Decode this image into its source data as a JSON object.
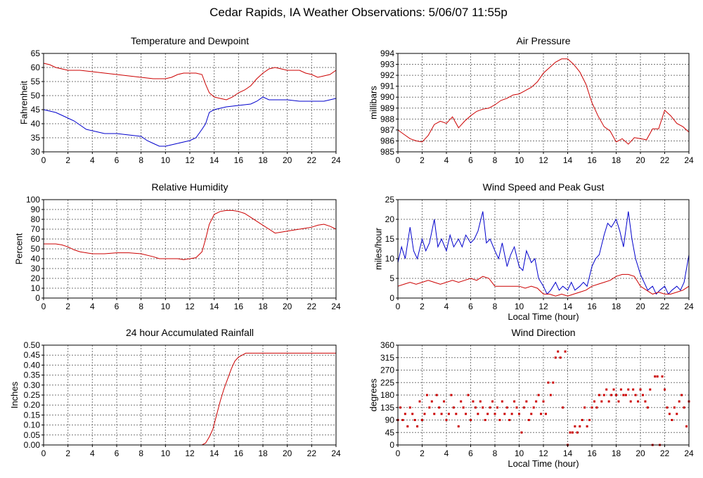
{
  "page_title": "Cedar Rapids, IA Weather Observations: 5/06/07 11:55p",
  "chart_data": [
    {
      "id": "temp",
      "type": "line",
      "title": "Temperature and Dewpoint",
      "xlabel": "",
      "ylabel": "Fahrenheit",
      "xlim": [
        0,
        24
      ],
      "ylim": [
        30,
        65
      ],
      "xticks": [
        0,
        2,
        4,
        6,
        8,
        10,
        12,
        14,
        16,
        18,
        20,
        22,
        24
      ],
      "yticks": [
        30,
        35,
        40,
        45,
        50,
        55,
        60,
        65
      ],
      "grid": true,
      "series": [
        {
          "color": "#cc0000",
          "x": [
            0,
            0.5,
            1,
            1.5,
            2,
            3,
            4,
            5,
            6,
            7,
            8,
            9,
            10,
            10.5,
            11,
            11.5,
            12,
            12.5,
            13,
            13.3,
            13.6,
            14,
            14.5,
            15,
            15.5,
            16,
            16.5,
            17,
            17.5,
            18,
            18.5,
            19,
            19.5,
            20,
            20.5,
            21,
            21.5,
            22,
            22.5,
            23,
            23.5,
            24
          ],
          "y": [
            61.5,
            61,
            60,
            59.5,
            59,
            59,
            58.5,
            58,
            57.5,
            57,
            56.5,
            56,
            56,
            56.5,
            57.5,
            58,
            58,
            58,
            57.5,
            54,
            51,
            49.5,
            49,
            48.5,
            49.5,
            51,
            52,
            53.5,
            56,
            58,
            59.5,
            60,
            59.5,
            59,
            59,
            59,
            58,
            57.5,
            56.5,
            57,
            57.5,
            59
          ]
        },
        {
          "color": "#0000cc",
          "x": [
            0,
            0.5,
            1,
            1.5,
            2,
            2.5,
            3,
            3.5,
            4,
            4.5,
            5,
            6,
            7,
            8,
            8.5,
            9,
            9.5,
            10,
            10.5,
            11,
            11.5,
            12,
            12.5,
            13,
            13.3,
            13.6,
            14,
            15,
            16,
            17,
            17.5,
            18,
            18.5,
            19,
            20,
            21,
            22,
            23,
            24
          ],
          "y": [
            45,
            44.5,
            44,
            43,
            42,
            41,
            39.5,
            38,
            37.5,
            37,
            36.5,
            36.5,
            36,
            35.5,
            34,
            33,
            32,
            32,
            32.5,
            33,
            33.5,
            34,
            35,
            38,
            40,
            44,
            45,
            46,
            46.5,
            47,
            48,
            49.5,
            48.5,
            48.5,
            48.5,
            48,
            48,
            48,
            49
          ]
        }
      ]
    },
    {
      "id": "pressure",
      "type": "line",
      "title": "Air Pressure",
      "xlabel": "",
      "ylabel": "millibars",
      "xlim": [
        0,
        24
      ],
      "ylim": [
        985,
        994
      ],
      "xticks": [
        0,
        2,
        4,
        6,
        8,
        10,
        12,
        14,
        16,
        18,
        20,
        22,
        24
      ],
      "yticks": [
        985,
        986,
        987,
        988,
        989,
        990,
        991,
        992,
        993,
        994
      ],
      "grid": true,
      "series": [
        {
          "color": "#cc0000",
          "x": [
            0,
            0.5,
            1,
            1.5,
            2,
            2.5,
            3,
            3.5,
            4,
            4.5,
            5,
            5.5,
            6,
            6.5,
            7,
            7.5,
            8,
            8.5,
            9,
            9.5,
            10,
            10.5,
            11,
            11.5,
            12,
            12.5,
            13,
            13.5,
            14,
            14.5,
            15,
            15.5,
            16,
            16.5,
            17,
            17.5,
            18,
            18.5,
            19,
            19.5,
            20,
            20.5,
            21,
            21.5,
            22,
            22.5,
            23,
            23.5,
            24
          ],
          "y": [
            987,
            986.6,
            986.2,
            986,
            985.9,
            986.5,
            987.5,
            987.8,
            987.6,
            988.2,
            987.2,
            987.8,
            988.3,
            988.7,
            988.9,
            989,
            989.3,
            989.7,
            989.9,
            990.2,
            990.3,
            990.6,
            990.9,
            991.4,
            992.2,
            992.7,
            993.2,
            993.5,
            993.5,
            993.0,
            992.3,
            991.2,
            989.5,
            988.3,
            987.3,
            986.9,
            985.9,
            986.2,
            985.7,
            986.3,
            986.2,
            986.1,
            987.1,
            987.1,
            988.8,
            988.3,
            987.6,
            987.3,
            986.8
          ]
        }
      ]
    },
    {
      "id": "humidity",
      "type": "line",
      "title": "Relative Humidity",
      "xlabel": "",
      "ylabel": "Percent",
      "xlim": [
        0,
        24
      ],
      "ylim": [
        0,
        100
      ],
      "xticks": [
        0,
        2,
        4,
        6,
        8,
        10,
        12,
        14,
        16,
        18,
        20,
        22,
        24
      ],
      "yticks": [
        0,
        10,
        20,
        30,
        40,
        50,
        60,
        70,
        80,
        90,
        100
      ],
      "grid": true,
      "series": [
        {
          "color": "#cc0000",
          "x": [
            0,
            1,
            1.5,
            2,
            2.5,
            3,
            3.5,
            4,
            5,
            6,
            7,
            8,
            9,
            9.5,
            10,
            10.5,
            11,
            11.5,
            12,
            12.5,
            13,
            13.3,
            13.6,
            14,
            14.5,
            15,
            15.5,
            16,
            16.5,
            17,
            17.5,
            18,
            18.5,
            19,
            19.5,
            20,
            20.5,
            21,
            21.5,
            22,
            22.5,
            23,
            23.5,
            24
          ],
          "y": [
            55,
            55,
            54,
            52,
            49,
            47,
            46,
            45,
            45,
            46,
            46,
            45,
            42,
            40,
            40,
            40,
            40,
            39,
            40,
            41,
            47,
            60,
            75,
            85,
            88,
            89,
            89,
            88,
            86,
            82,
            78,
            74,
            70,
            66,
            67,
            68,
            69,
            70,
            71,
            72,
            74,
            75,
            73,
            70
          ]
        }
      ]
    },
    {
      "id": "wind",
      "type": "line",
      "title": "Wind Speed and Peak Gust",
      "xlabel": "Local Time (hour)",
      "ylabel": "miles/hour",
      "xlim": [
        0,
        24
      ],
      "ylim": [
        0,
        25
      ],
      "xticks": [
        0,
        2,
        4,
        6,
        8,
        10,
        12,
        14,
        16,
        18,
        20,
        22,
        24
      ],
      "yticks": [
        0,
        5,
        10,
        15,
        20,
        25
      ],
      "grid": true,
      "series": [
        {
          "color": "#0000cc",
          "x": [
            0,
            0.3,
            0.6,
            1,
            1.3,
            1.6,
            2,
            2.3,
            2.6,
            3,
            3.3,
            3.6,
            4,
            4.3,
            4.6,
            5,
            5.3,
            5.6,
            6,
            6.3,
            6.6,
            7,
            7.3,
            7.6,
            8,
            8.3,
            8.6,
            9,
            9.3,
            9.6,
            10,
            10.3,
            10.6,
            11,
            11.3,
            11.6,
            12,
            12.3,
            12.6,
            13,
            13.3,
            13.6,
            14,
            14.3,
            14.6,
            15,
            15.3,
            15.6,
            16,
            16.3,
            16.6,
            17,
            17.3,
            17.6,
            18,
            18.3,
            18.6,
            19,
            19.3,
            19.6,
            20,
            20.3,
            20.6,
            21,
            21.3,
            21.6,
            22,
            22.3,
            22.6,
            23,
            23.3,
            23.6,
            24
          ],
          "y": [
            9,
            13,
            10,
            18,
            12,
            10,
            15,
            12,
            14,
            20,
            13,
            15,
            12,
            16,
            13,
            15,
            13,
            16,
            14,
            15,
            17,
            22,
            14,
            15,
            12,
            10,
            14,
            8,
            11,
            13,
            8,
            7,
            12,
            9,
            10,
            5,
            3,
            1,
            2,
            4,
            2,
            3,
            2,
            4,
            2,
            3,
            4,
            3,
            8,
            10,
            11,
            16,
            19,
            18,
            20,
            17,
            13,
            22,
            15,
            10,
            6,
            4,
            2,
            3,
            1,
            2,
            3,
            1,
            2,
            3,
            2,
            4,
            11
          ]
        },
        {
          "color": "#cc0000",
          "x": [
            0,
            0.5,
            1,
            1.5,
            2,
            2.5,
            3,
            3.5,
            4,
            4.5,
            5,
            5.5,
            6,
            6.5,
            7,
            7.5,
            8,
            8.5,
            9,
            9.5,
            10,
            10.5,
            11,
            11.5,
            12,
            12.5,
            13,
            13.5,
            14,
            14.5,
            15,
            15.5,
            16,
            16.5,
            17,
            17.5,
            18,
            18.5,
            19,
            19.5,
            20,
            20.5,
            21,
            21.5,
            22,
            22.5,
            23,
            23.5,
            24
          ],
          "y": [
            3,
            3.5,
            4,
            3.5,
            4,
            4.5,
            4,
            3.5,
            4,
            4.5,
            4,
            4.5,
            5,
            4.5,
            5.5,
            5,
            3,
            3,
            3,
            3,
            3,
            2.5,
            3,
            2.5,
            1,
            1,
            0.5,
            1,
            0.5,
            1,
            1.5,
            2,
            3,
            3.5,
            4,
            4.5,
            5.5,
            6,
            6,
            5.5,
            3,
            2,
            1,
            1.5,
            1,
            1,
            1.5,
            2,
            3
          ]
        }
      ]
    },
    {
      "id": "rain",
      "type": "line",
      "title": "24 hour Accumulated Rainfall",
      "xlabel": "",
      "ylabel": "Inches",
      "xlim": [
        0,
        24
      ],
      "ylim": [
        0,
        0.5
      ],
      "xticks": [
        0,
        2,
        4,
        6,
        8,
        10,
        12,
        14,
        16,
        18,
        20,
        22,
        24
      ],
      "yticks": [
        "0.00",
        "0.05",
        "0.10",
        "0.15",
        "0.20",
        "0.25",
        "0.30",
        "0.35",
        "0.40",
        "0.45",
        "0.50"
      ],
      "grid": true,
      "series": [
        {
          "color": "#cc0000",
          "x": [
            0,
            13.0,
            13.3,
            13.6,
            13.9,
            14.2,
            14.5,
            14.8,
            15.1,
            15.4,
            15.7,
            16.0,
            16.3,
            16.6,
            17,
            18,
            20,
            22,
            24
          ],
          "y": [
            0,
            0,
            0.01,
            0.04,
            0.08,
            0.15,
            0.22,
            0.28,
            0.33,
            0.38,
            0.42,
            0.44,
            0.45,
            0.46,
            0.46,
            0.46,
            0.46,
            0.46,
            0.46
          ]
        }
      ]
    },
    {
      "id": "direction",
      "type": "scatter",
      "title": "Wind Direction",
      "xlabel": "Local Time (hour)",
      "ylabel": "degrees",
      "xlim": [
        0,
        24
      ],
      "ylim": [
        0,
        360
      ],
      "xticks": [
        0,
        2,
        4,
        6,
        8,
        10,
        12,
        14,
        16,
        18,
        20,
        22,
        24
      ],
      "yticks": [
        0,
        45,
        90,
        135,
        180,
        225,
        270,
        315,
        360
      ],
      "grid": true,
      "series": [
        {
          "color": "#cc0000",
          "x": [
            0,
            0.2,
            0.4,
            0.6,
            0.8,
            1,
            1.2,
            1.4,
            1.6,
            1.8,
            2,
            2.2,
            2.4,
            2.6,
            2.8,
            3,
            3.2,
            3.4,
            3.6,
            3.8,
            4,
            4.2,
            4.4,
            4.6,
            4.8,
            5,
            5.2,
            5.4,
            5.6,
            5.8,
            6,
            6.2,
            6.4,
            6.6,
            6.8,
            7,
            7.2,
            7.4,
            7.6,
            7.8,
            8,
            8.2,
            8.4,
            8.6,
            8.8,
            9,
            9.2,
            9.4,
            9.6,
            9.8,
            10,
            10.2,
            10.4,
            10.6,
            10.8,
            11,
            11.2,
            11.4,
            11.6,
            11.8,
            12,
            12.2,
            12.4,
            12.6,
            12.8,
            13,
            13.2,
            13.4,
            13.6,
            13.8,
            14,
            14.2,
            14.4,
            14.6,
            14.8,
            15,
            15.2,
            15.4,
            15.6,
            15.8,
            16,
            16.2,
            16.4,
            16.6,
            16.8,
            17,
            17.2,
            17.4,
            17.6,
            17.8,
            18,
            18.2,
            18.4,
            18.6,
            18.8,
            19,
            19.2,
            19.4,
            19.6,
            19.8,
            20,
            20.2,
            20.4,
            20.6,
            20.8,
            21,
            21.2,
            21.4,
            21.6,
            21.8,
            22,
            22.2,
            22.4,
            22.6,
            22.8,
            23,
            23.2,
            23.4,
            23.6,
            23.8,
            24
          ],
          "y": [
            90,
            135,
            90,
            112,
            67,
            135,
            112,
            90,
            67,
            157,
            90,
            112,
            180,
            135,
            157,
            112,
            180,
            135,
            112,
            157,
            90,
            112,
            180,
            135,
            112,
            67,
            157,
            135,
            112,
            180,
            90,
            157,
            135,
            112,
            157,
            135,
            90,
            112,
            135,
            157,
            112,
            135,
            90,
            157,
            112,
            135,
            90,
            112,
            157,
            135,
            112,
            45,
            135,
            157,
            90,
            112,
            135,
            157,
            180,
            112,
            157,
            112,
            225,
            180,
            225,
            315,
            337,
            315,
            135,
            337,
            0,
            45,
            45,
            67,
            45,
            67,
            90,
            135,
            67,
            90,
            135,
            157,
            135,
            180,
            157,
            180,
            200,
            157,
            180,
            200,
            180,
            157,
            200,
            180,
            180,
            200,
            157,
            200,
            180,
            157,
            200,
            180,
            157,
            135,
            200,
            0,
            247,
            247,
            0,
            247,
            200,
            135,
            112,
            90,
            135,
            112,
            157,
            180,
            135,
            67,
            157
          ]
        }
      ]
    }
  ]
}
